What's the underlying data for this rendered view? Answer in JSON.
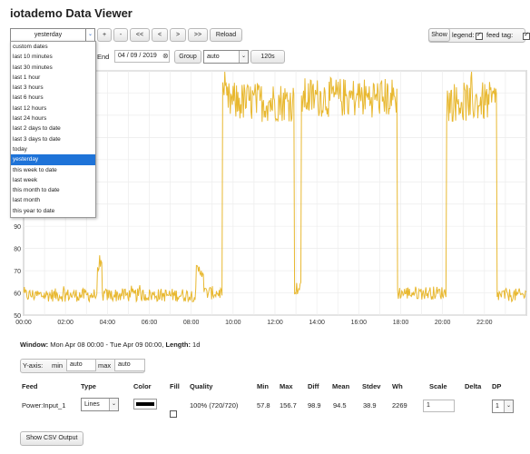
{
  "title": "iotademo Data Viewer",
  "toolbar": {
    "range_selected": "yesterday",
    "btn_plus": "+",
    "btn_minus": "-",
    "btn_prev_fast": "<<",
    "btn_prev": "<",
    "btn_next": ">",
    "btn_next_fast": ">>",
    "btn_reload": "Reload",
    "show_label": "Show",
    "legend_label": "legend:",
    "feedtag_label": "feed tag:"
  },
  "range_options": [
    "custom dates",
    "last 10 minutes",
    "last 30 minutes",
    "last 1 hour",
    "last 3 hours",
    "last 6 hours",
    "last 12 hours",
    "last 24 hours",
    "last 2 days to date",
    "last 3 days to date",
    "today",
    "yesterday",
    "this week to date",
    "last week",
    "this month to date",
    "last month",
    "this year to date"
  ],
  "range_selected_index": 11,
  "controls": {
    "end_label": "End",
    "end_value": "04 / 09 / 2019",
    "group_label": "Group",
    "group_value": "auto",
    "interval": "120s"
  },
  "chart_data": {
    "type": "line",
    "series": [
      {
        "name": "Power:Input_1",
        "color": "#e8b830"
      }
    ],
    "x_ticks": [
      "00:00",
      "02:00",
      "04:00",
      "06:00",
      "08:00",
      "10:00",
      "12:00",
      "14:00",
      "16:00",
      "18:00",
      "20:00",
      "22:00"
    ],
    "y_ticks": [
      50,
      60,
      70,
      80,
      90
    ],
    "xlim": [
      "00:00",
      "24:00"
    ],
    "ylim": [
      50,
      160
    ],
    "segments": [
      {
        "from": "00:00",
        "to": "03:30",
        "level": 59
      },
      {
        "from": "03:30",
        "to": "03:45",
        "level": 72
      },
      {
        "from": "03:45",
        "to": "08:15",
        "level": 59
      },
      {
        "from": "08:15",
        "to": "08:35",
        "level": 70
      },
      {
        "from": "08:35",
        "to": "09:30",
        "level": 60
      },
      {
        "from": "09:30",
        "to": "12:55",
        "level": 146
      },
      {
        "from": "12:55",
        "to": "13:15",
        "level": 62
      },
      {
        "from": "13:15",
        "to": "17:50",
        "level": 148
      },
      {
        "from": "17:50",
        "to": "20:10",
        "level": 60
      },
      {
        "from": "20:10",
        "to": "22:35",
        "level": 146
      },
      {
        "from": "22:35",
        "to": "24:00",
        "level": 59
      }
    ],
    "grid": true,
    "legend": "none"
  },
  "window_info": {
    "window_label": "Window:",
    "window_value": "Mon Apr 08 00:00 - Tue Apr 09 00:00,",
    "length_label": "Length:",
    "length_value": "1d"
  },
  "yaxis": {
    "label": "Y-axis:",
    "min_label": "min",
    "min_value": "auto",
    "max_label": "max",
    "max_value": "auto"
  },
  "table": {
    "headers": [
      "Feed",
      "Type",
      "Color",
      "Fill",
      "Quality",
      "Min",
      "Max",
      "Diff",
      "Mean",
      "Stdev",
      "Wh",
      "Scale",
      "Delta",
      "DP"
    ],
    "row": {
      "feed": "Power:Input_1",
      "type": "Lines",
      "color": "#000000",
      "quality": "100% (720/720)",
      "min": "57.8",
      "max": "156.7",
      "diff": "98.9",
      "mean": "94.5",
      "stdev": "38.9",
      "wh": "2269",
      "scale": "1",
      "dp": "1"
    }
  },
  "csv_button": "Show CSV Output"
}
